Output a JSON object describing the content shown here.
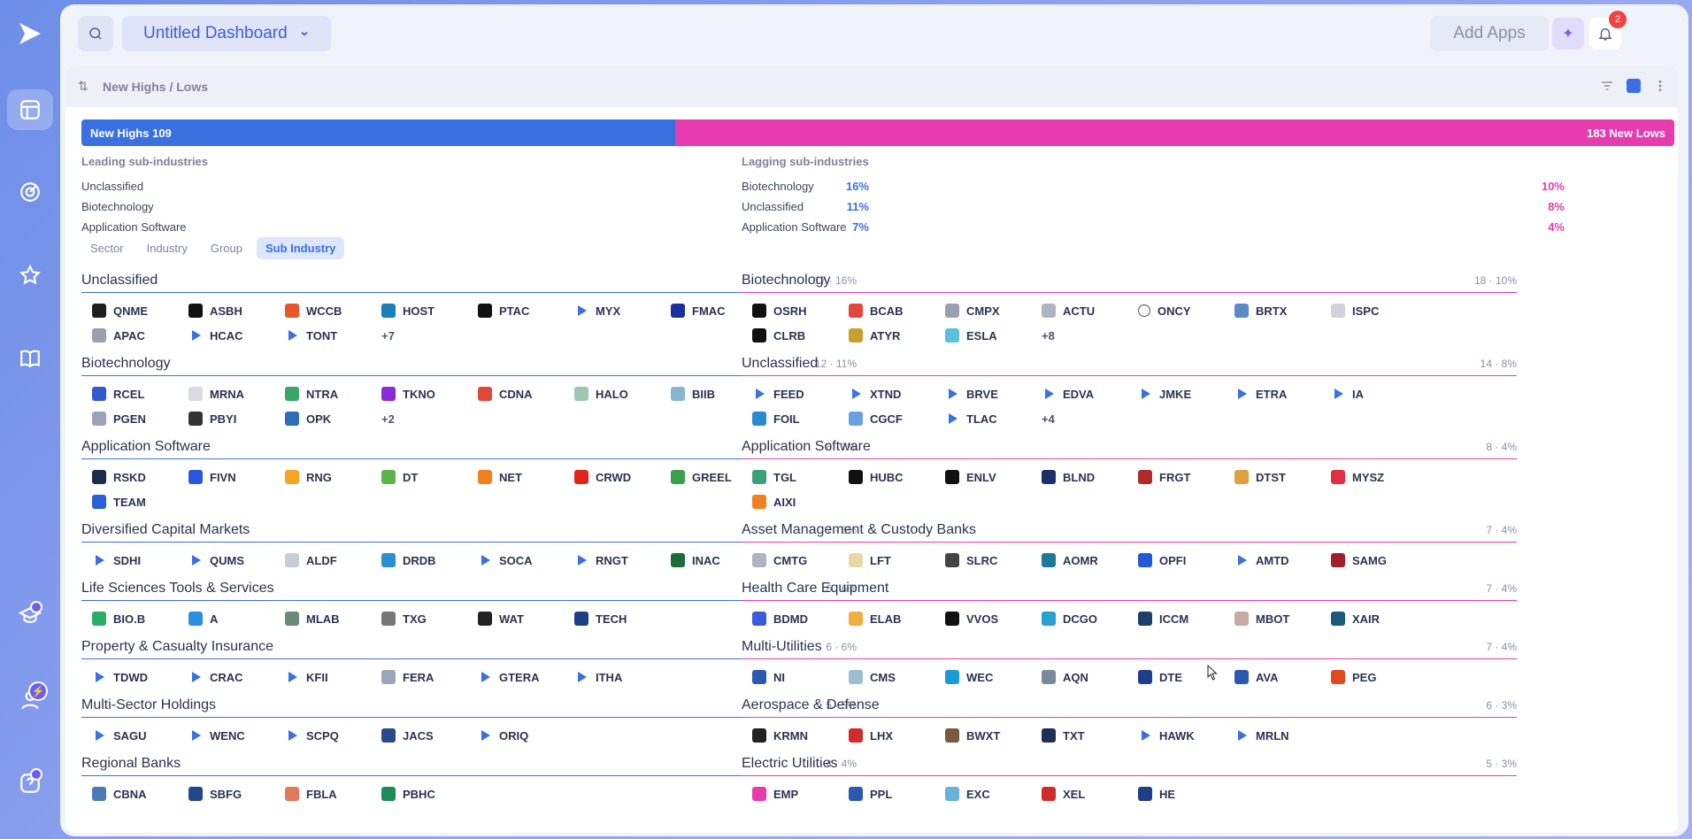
{
  "header": {
    "dashboard_title": "Untitled Dashboard",
    "add_apps_label": "Add Apps",
    "notification_count": "2"
  },
  "widget": {
    "title": "New Highs / Lows",
    "bar": {
      "highs_label": "New Highs",
      "highs_count": "109",
      "lows_label": "New Lows",
      "lows_count": "183",
      "highs_fraction": 0.373
    },
    "leading": {
      "heading": "Leading sub-industries",
      "rows": [
        {
          "name": "Unclassified",
          "pct": "16%"
        },
        {
          "name": "Biotechnology",
          "pct": "11%"
        },
        {
          "name": "Application Software",
          "pct": "7%"
        }
      ]
    },
    "lagging": {
      "heading": "Lagging sub-industries",
      "rows": [
        {
          "name": "Biotechnology",
          "pct": "10%"
        },
        {
          "name": "Unclassified",
          "pct": "8%"
        },
        {
          "name": "Application Software",
          "pct": "4%"
        }
      ]
    },
    "tabs": [
      {
        "label": "Sector",
        "active": false
      },
      {
        "label": "Industry",
        "active": false
      },
      {
        "label": "Group",
        "active": false
      },
      {
        "label": "Sub Industry",
        "active": true
      }
    ],
    "highs_groups": [
      {
        "name": "Unclassified",
        "meta": "17 · 16%",
        "tickers": [
          {
            "s": "QNME",
            "c": "#1f1f1f"
          },
          {
            "s": "ASBH",
            "c": "#111111"
          },
          {
            "s": "WCCB",
            "c": "#e8572a"
          },
          {
            "s": "HOST",
            "c": "#1a7fb8"
          },
          {
            "s": "PTAC",
            "c": "#111111"
          },
          {
            "s": "MYX",
            "c": "tri"
          },
          {
            "s": "FMAC",
            "c": "#1b2f9e"
          },
          {
            "s": "APAC",
            "c": "#9aa0b0"
          },
          {
            "s": "HCAC",
            "c": "tri"
          },
          {
            "s": "TONT",
            "c": "tri"
          }
        ],
        "more": "+7"
      },
      {
        "name": "Biotechnology",
        "meta": "12 · 11%",
        "tickers": [
          {
            "s": "RCEL",
            "c": "#2f5bd1"
          },
          {
            "s": "MRNA",
            "c": "#d9dbe3"
          },
          {
            "s": "NTRA",
            "c": "#3aa66a"
          },
          {
            "s": "TKNO",
            "c": "#8a2bd8"
          },
          {
            "s": "CDNA",
            "c": "#e0483a"
          },
          {
            "s": "HALO",
            "c": "#9fc6b0"
          },
          {
            "s": "BIIB",
            "c": "#8ab5d0"
          },
          {
            "s": "PGEN",
            "c": "#9ba3b8"
          },
          {
            "s": "PBYI",
            "c": "#333333"
          },
          {
            "s": "OPK",
            "c": "#2c6fb5"
          }
        ],
        "more": "+2"
      },
      {
        "name": "Application Software",
        "meta": "8 · 7%",
        "tickers": [
          {
            "s": "RSKD",
            "c": "#1b2b4a"
          },
          {
            "s": "FIVN",
            "c": "#2a57e0"
          },
          {
            "s": "RNG",
            "c": "#f5a623"
          },
          {
            "s": "DT",
            "c": "#5bb34a"
          },
          {
            "s": "NET",
            "c": "#f38020"
          },
          {
            "s": "CRWD",
            "c": "#e0251b"
          },
          {
            "s": "GREEL",
            "c": "#3aa04a"
          },
          {
            "s": "TEAM",
            "c": "#2a5fd8"
          }
        ],
        "more": ""
      },
      {
        "name": "Diversified Capital Markets",
        "meta": "7 · 6%",
        "tickers": [
          {
            "s": "SDHI",
            "c": "tri"
          },
          {
            "s": "QUMS",
            "c": "tri"
          },
          {
            "s": "ALDF",
            "c": "#c8ccd8"
          },
          {
            "s": "DRDB",
            "c": "#2a8fd0"
          },
          {
            "s": "SOCA",
            "c": "tri"
          },
          {
            "s": "RNGT",
            "c": "tri"
          },
          {
            "s": "INAC",
            "c": "#1c6b3a"
          }
        ],
        "more": ""
      },
      {
        "name": "Life Sciences Tools & Services",
        "meta": "6 · 6%",
        "tickers": [
          {
            "s": "BIO.B",
            "c": "#2cae6a"
          },
          {
            "s": "A",
            "c": "#2a8fe0"
          },
          {
            "s": "MLAB",
            "c": "#6a8a7a"
          },
          {
            "s": "TXG",
            "c": "#777777"
          },
          {
            "s": "WAT",
            "c": "#222222"
          },
          {
            "s": "TECH",
            "c": "#1d3f8a"
          }
        ],
        "more": ""
      },
      {
        "name": "Property & Casualty Insurance",
        "meta": "6 · 6%",
        "tickers": [
          {
            "s": "TDWD",
            "c": "tri"
          },
          {
            "s": "CRAC",
            "c": "tri"
          },
          {
            "s": "KFII",
            "c": "tri"
          },
          {
            "s": "FERA",
            "c": "#9aa7b8"
          },
          {
            "s": "GTERA",
            "c": "tri"
          },
          {
            "s": "ITHA",
            "c": "tri"
          }
        ],
        "more": ""
      },
      {
        "name": "Multi-Sector Holdings",
        "meta": "5 · 5%",
        "tickers": [
          {
            "s": "SAGU",
            "c": "tri"
          },
          {
            "s": "WENC",
            "c": "tri"
          },
          {
            "s": "SCPQ",
            "c": "tri"
          },
          {
            "s": "JACS",
            "c": "#2a4a8a"
          },
          {
            "s": "ORIQ",
            "c": "tri"
          }
        ],
        "more": ""
      },
      {
        "name": "Regional Banks",
        "meta": "4 · 4%",
        "tickers": [
          {
            "s": "CBNA",
            "c": "#4a7ab8"
          },
          {
            "s": "SBFG",
            "c": "#24468a"
          },
          {
            "s": "FBLA",
            "c": "#e07a5a"
          },
          {
            "s": "PBHC",
            "c": "#1f8a5a"
          }
        ],
        "more": ""
      }
    ],
    "lows_groups": [
      {
        "name": "Biotechnology",
        "meta": "18 · 10%",
        "tickers": [
          {
            "s": "OSRH",
            "c": "#111111"
          },
          {
            "s": "BCAB",
            "c": "#e0483a"
          },
          {
            "s": "CMPX",
            "c": "#9aa0b0"
          },
          {
            "s": "ACTU",
            "c": "#b0b4c0"
          },
          {
            "s": "ONCY",
            "c": "#ffffff"
          },
          {
            "s": "BRTX",
            "c": "#5a8ac8"
          },
          {
            "s": "ISPC",
            "c": "#d0d3dc"
          },
          {
            "s": "CLRB",
            "c": "#111111"
          },
          {
            "s": "ATYR",
            "c": "#c8a030"
          },
          {
            "s": "ESLA",
            "c": "#5ac0e0"
          }
        ],
        "more": "+8"
      },
      {
        "name": "Unclassified",
        "meta": "14 · 8%",
        "tickers": [
          {
            "s": "FEED",
            "c": "tri"
          },
          {
            "s": "XTND",
            "c": "tri"
          },
          {
            "s": "BRVE",
            "c": "tri"
          },
          {
            "s": "EDVA",
            "c": "tri"
          },
          {
            "s": "JMKE",
            "c": "tri"
          },
          {
            "s": "ETRA",
            "c": "tri"
          },
          {
            "s": "IA",
            "c": "tri"
          },
          {
            "s": "FOIL",
            "c": "#2a8ad0"
          },
          {
            "s": "CGCF",
            "c": "#6aa0e0"
          },
          {
            "s": "TLAC",
            "c": "tri"
          }
        ],
        "more": "+4"
      },
      {
        "name": "Application Software",
        "meta": "8 · 4%",
        "tickers": [
          {
            "s": "TGL",
            "c": "#3aa07a"
          },
          {
            "s": "HUBC",
            "c": "#111111"
          },
          {
            "s": "ENLV",
            "c": "#111111"
          },
          {
            "s": "BLND",
            "c": "#1d2f6a"
          },
          {
            "s": "FRGT",
            "c": "#b02a2a"
          },
          {
            "s": "DTST",
            "c": "#e0a040"
          },
          {
            "s": "MYSZ",
            "c": "#e03040"
          },
          {
            "s": "AIXI",
            "c": "#f08020"
          }
        ],
        "more": ""
      },
      {
        "name": "Asset Management & Custody Banks",
        "meta": "7 · 4%",
        "tickers": [
          {
            "s": "CMTG",
            "c": "#b0b4c0"
          },
          {
            "s": "LFT",
            "c": "#e8d8a8"
          },
          {
            "s": "SLRC",
            "c": "#444444"
          },
          {
            "s": "AOMR",
            "c": "#1a7a9a"
          },
          {
            "s": "OPFI",
            "c": "#1f5ad8"
          },
          {
            "s": "AMTD",
            "c": "tri"
          },
          {
            "s": "SAMG",
            "c": "#a01f2a"
          }
        ],
        "more": ""
      },
      {
        "name": "Health Care Equipment",
        "meta": "7 · 4%",
        "tickers": [
          {
            "s": "BDMD",
            "c": "#3a5ad8"
          },
          {
            "s": "ELAB",
            "c": "#f0b040"
          },
          {
            "s": "VVOS",
            "c": "#111111"
          },
          {
            "s": "DCGO",
            "c": "#2aa0d0"
          },
          {
            "s": "ICCM",
            "c": "#1d3f6a"
          },
          {
            "s": "MBOT",
            "c": "#c8a8a0"
          },
          {
            "s": "XAIR",
            "c": "#1a5a7a"
          }
        ],
        "more": ""
      },
      {
        "name": "Multi-Utilities",
        "meta": "7 · 4%",
        "tickers": [
          {
            "s": "NI",
            "c": "#2a5ab0"
          },
          {
            "s": "CMS",
            "c": "#9ac0d0"
          },
          {
            "s": "WEC",
            "c": "#1a9ad8"
          },
          {
            "s": "AQN",
            "c": "#7a8a9a"
          },
          {
            "s": "DTE",
            "c": "#1d3f8a"
          },
          {
            "s": "AVA",
            "c": "#2a5ab0"
          },
          {
            "s": "PEG",
            "c": "#e04a20"
          }
        ],
        "more": ""
      },
      {
        "name": "Aerospace & Defense",
        "meta": "6 · 3%",
        "tickers": [
          {
            "s": "KRMN",
            "c": "#222222"
          },
          {
            "s": "LHX",
            "c": "#d02a2a"
          },
          {
            "s": "BWXT",
            "c": "#7a5a3a"
          },
          {
            "s": "TXT",
            "c": "#1d2f5a"
          },
          {
            "s": "HAWK",
            "c": "tri"
          },
          {
            "s": "MRLN",
            "c": "tri"
          }
        ],
        "more": ""
      },
      {
        "name": "Electric Utilities",
        "meta": "5 · 3%",
        "tickers": [
          {
            "s": "EMP",
            "c": "#e63cae"
          },
          {
            "s": "PPL",
            "c": "#2a5ab0"
          },
          {
            "s": "EXC",
            "c": "#6ab0d8"
          },
          {
            "s": "XEL",
            "c": "#d02a2a"
          },
          {
            "s": "HE",
            "c": "#1d3f8a"
          }
        ],
        "more": ""
      }
    ]
  },
  "icons": {
    "rail": [
      "logo-icon",
      "dashboard-icon",
      "radar-icon",
      "star-icon",
      "book-icon",
      "learn-icon",
      "user-icon",
      "help-icon"
    ],
    "colors": {
      "highs": "#3a70e0",
      "lows": "#e63cae"
    }
  }
}
